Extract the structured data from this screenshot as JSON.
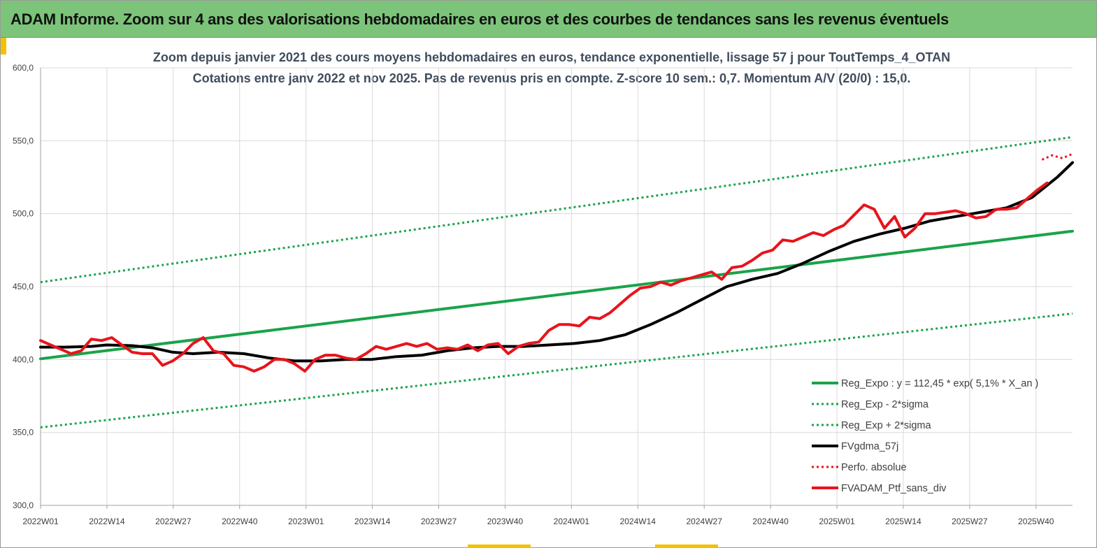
{
  "header": {
    "title": "ADAM Informe. Zoom sur 4 ans des valorisations hebdomadaires en euros et des courbes de tendances sans les revenus éventuels"
  },
  "colors": {
    "header_bg": "#7cc47a",
    "green": "#1aa34a",
    "black": "#000000",
    "red": "#e8141b",
    "accent": "#f2c200"
  },
  "chart_data": {
    "type": "line",
    "title": "Zoom depuis janvier 2021 des cours moyens hebdomadaires  en euros, tendance exponentielle, lissage 57 j pour ToutTemps_4_OTAN",
    "subtitle": "Cotations  entre janv 2022 et nov 2025. Pas de revenus pris en compte. Z-score 10 sem.: 0,7. Momentum A/V (20/0) : 15,0.",
    "xlabel": "",
    "ylabel": "",
    "ylim": [
      300,
      600
    ],
    "yticks": [
      "600,0",
      "550,0",
      "500,0",
      "450,0",
      "400,0",
      "350,0",
      "300,0"
    ],
    "xticks": [
      "2022W01",
      "2022W14",
      "2022W27",
      "2022W40",
      "2023W01",
      "2023W14",
      "2023W27",
      "2023W40",
      "2024W01",
      "2024W14",
      "2024W27",
      "2024W40",
      "2025W01",
      "2025W14",
      "2025W27",
      "2025W40"
    ],
    "x_index_range": [
      0,
      203
    ],
    "grid": true,
    "legend_position": "bottom-right",
    "series": [
      {
        "name": "Reg_Expo : y = 112,45 * exp( 5,1% *  X_an )",
        "style": "solid-green",
        "x": [
          0,
          203
        ],
        "values": [
          400.5,
          488
        ]
      },
      {
        "name": "Reg_Exp - 2*sigma",
        "style": "dotted-green",
        "x": [
          0,
          203
        ],
        "values": [
          353.5,
          431.5
        ]
      },
      {
        "name": "Reg_Exp + 2*sigma",
        "style": "dotted-green",
        "x": [
          0,
          203
        ],
        "values": [
          453,
          552.5
        ]
      },
      {
        "name": "FVgdma_57j",
        "style": "solid-black",
        "x": [
          0,
          5,
          10,
          13,
          18,
          22,
          26,
          30,
          35,
          40,
          45,
          50,
          55,
          60,
          65,
          70,
          75,
          80,
          85,
          90,
          95,
          100,
          105,
          110,
          115,
          120,
          125,
          130,
          135,
          140,
          145,
          150,
          155,
          160,
          165,
          170,
          175,
          180,
          185,
          190,
          195,
          200,
          203
        ],
        "values": [
          408.5,
          408.5,
          409,
          410,
          409.5,
          408,
          405,
          404,
          405,
          404,
          401,
          399,
          399,
          400,
          400,
          402,
          403,
          406,
          408,
          409,
          409,
          410,
          411,
          413,
          417,
          424,
          432,
          441,
          450,
          455,
          459,
          466,
          474,
          481,
          486,
          490,
          495,
          498,
          501,
          504,
          511,
          525,
          535
        ]
      },
      {
        "name": "Perfo. absolue",
        "style": "dotted-red",
        "x": [
          197,
          199,
          201,
          203
        ],
        "values": [
          537,
          540,
          538,
          541
        ]
      },
      {
        "name": "FVADAM_Ptf_sans_div",
        "style": "solid-red",
        "x": [
          0,
          2,
          4,
          6,
          8,
          10,
          12,
          14,
          16,
          18,
          20,
          22,
          24,
          26,
          28,
          30,
          32,
          34,
          36,
          38,
          40,
          42,
          44,
          46,
          48,
          50,
          52,
          54,
          56,
          58,
          60,
          62,
          64,
          66,
          68,
          70,
          72,
          74,
          76,
          78,
          80,
          82,
          84,
          86,
          88,
          90,
          92,
          94,
          96,
          98,
          100,
          102,
          104,
          106,
          108,
          110,
          112,
          114,
          116,
          118,
          120,
          122,
          124,
          126,
          128,
          130,
          132,
          134,
          136,
          138,
          140,
          142,
          144,
          146,
          148,
          150,
          152,
          154,
          156,
          158,
          160,
          162,
          164,
          166,
          168,
          170,
          172,
          174,
          176,
          178,
          180,
          182,
          184,
          186,
          188,
          190,
          192,
          194,
          196,
          198
        ],
        "values": [
          413,
          410,
          407,
          404,
          406,
          414,
          413,
          415,
          410,
          405,
          404,
          404,
          396,
          399,
          404,
          411,
          415,
          406,
          404,
          396,
          395,
          392,
          395,
          400,
          400,
          397,
          392,
          400,
          403,
          403,
          401,
          400,
          404,
          409,
          407,
          409,
          411,
          409,
          411,
          407,
          408,
          407,
          410,
          406,
          410,
          411,
          404,
          409,
          411,
          412,
          420,
          424,
          424,
          423,
          429,
          428,
          432,
          438,
          444,
          449,
          450,
          453,
          451,
          454,
          456,
          458,
          460,
          455,
          463,
          464,
          468,
          473,
          475,
          482,
          481,
          484,
          487,
          485,
          489,
          492,
          499,
          506,
          503,
          490,
          498,
          484,
          490,
          500,
          500,
          501,
          502,
          500,
          497,
          498,
          503,
          503,
          504,
          510,
          516,
          521
        ]
      }
    ]
  },
  "legend_items": [
    "Reg_Expo : y = 112,45 * exp( 5,1% *  X_an )",
    "Reg_Exp - 2*sigma",
    "Reg_Exp + 2*sigma",
    "FVgdma_57j",
    "Perfo. absolue",
    "FVADAM_Ptf_sans_div"
  ]
}
